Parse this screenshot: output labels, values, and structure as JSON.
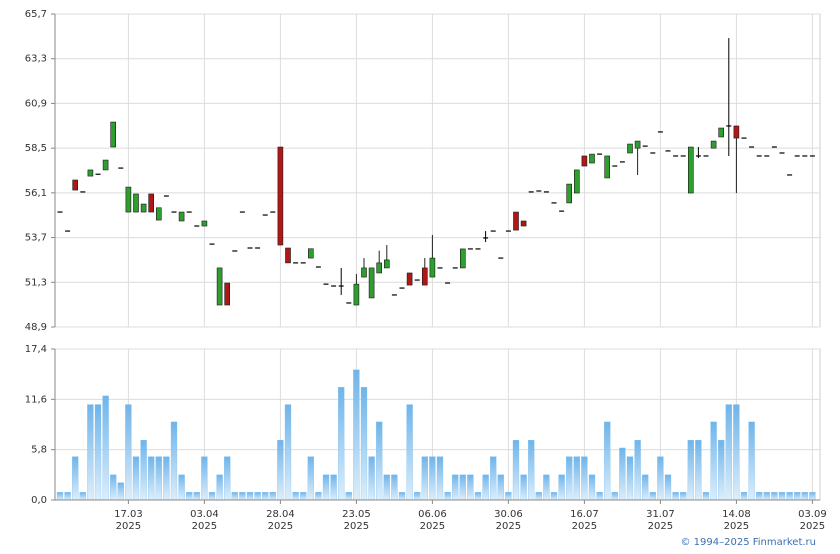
{
  "chart_data": {
    "type": "candlestick",
    "categories": [
      null,
      null,
      null,
      null,
      null,
      null,
      null,
      null,
      null,
      [
        "17.03",
        "2025"
      ],
      null,
      null,
      null,
      null,
      null,
      null,
      null,
      null,
      null,
      [
        "03.04",
        "2025"
      ],
      null,
      null,
      null,
      null,
      null,
      null,
      null,
      null,
      null,
      [
        "28.04",
        "2025"
      ],
      null,
      null,
      null,
      null,
      null,
      null,
      null,
      null,
      null,
      [
        "23.05",
        "2025"
      ],
      null,
      null,
      null,
      null,
      null,
      null,
      null,
      null,
      null,
      [
        "06.06",
        "2025"
      ],
      null,
      null,
      null,
      null,
      null,
      null,
      null,
      null,
      null,
      [
        "30.06",
        "2025"
      ],
      null,
      null,
      null,
      null,
      null,
      null,
      null,
      null,
      null,
      [
        "16.07",
        "2025"
      ],
      null,
      null,
      null,
      null,
      null,
      null,
      null,
      null,
      null,
      [
        "31.07",
        "2025"
      ],
      null,
      null,
      null,
      null,
      null,
      null,
      null,
      null,
      null,
      [
        "14.08",
        "2025"
      ],
      null,
      null,
      null,
      null,
      null,
      null,
      null,
      null,
      null,
      [
        "03.09",
        "2025"
      ]
    ],
    "open": [
      55.07,
      54.05,
      56.79,
      56.15,
      57.0,
      57.1,
      57.33,
      58.56,
      57.43,
      55.07,
      55.07,
      55.07,
      56.04,
      54.64,
      55.93,
      55.07,
      54.59,
      55.07,
      54.32,
      54.32,
      53.35,
      50.08,
      51.26,
      52.98,
      55.07,
      53.14,
      53.14,
      54.91,
      55.07,
      58.56,
      53.14,
      52.34,
      52.34,
      52.6,
      52.12,
      51.2,
      51.1,
      51.1,
      50.19,
      50.08,
      51.58,
      50.46,
      51.8,
      52.07,
      50.62,
      50.99,
      51.8,
      51.42,
      52.07,
      51.58,
      52.07,
      51.26,
      52.07,
      52.07,
      53.09,
      53.09,
      53.68,
      54.05,
      52.6,
      54.05,
      55.07,
      54.59,
      56.15,
      56.2,
      56.15,
      55.56,
      55.12,
      55.56,
      56.09,
      58.08,
      57.7,
      58.18,
      56.9,
      57.54,
      57.76,
      58.24,
      58.5,
      58.61,
      58.24,
      59.37,
      58.35,
      58.08,
      58.08,
      56.09,
      58.08,
      58.08,
      58.5,
      59.1,
      59.69,
      59.69,
      59.04,
      58.56,
      58.08,
      58.08,
      58.56,
      58.24,
      57.06,
      58.08,
      58.08,
      58.08
    ],
    "high": [
      55.07,
      54.05,
      56.79,
      56.15,
      57.33,
      57.1,
      57.86,
      59.9,
      57.43,
      56.41,
      56.04,
      55.5,
      56.04,
      55.3,
      55.93,
      55.07,
      55.07,
      55.07,
      54.32,
      54.59,
      53.35,
      52.07,
      51.26,
      52.98,
      55.07,
      53.14,
      53.14,
      54.91,
      55.07,
      58.56,
      53.14,
      52.34,
      52.34,
      53.1,
      52.12,
      51.2,
      51.1,
      52.07,
      50.19,
      51.74,
      52.6,
      52.07,
      53.0,
      53.3,
      50.62,
      50.99,
      51.8,
      51.42,
      52.6,
      53.84,
      52.07,
      51.26,
      52.07,
      53.09,
      53.09,
      53.09,
      54.05,
      54.05,
      52.6,
      54.05,
      55.07,
      54.59,
      56.15,
      56.2,
      56.15,
      55.56,
      55.12,
      56.57,
      57.33,
      58.08,
      58.18,
      58.18,
      58.08,
      57.54,
      57.76,
      58.72,
      58.88,
      58.61,
      58.24,
      59.37,
      58.35,
      58.08,
      58.08,
      58.56,
      58.56,
      58.08,
      58.88,
      59.58,
      64.41,
      59.69,
      59.04,
      58.56,
      58.08,
      58.08,
      58.56,
      58.24,
      57.06,
      58.08,
      58.08,
      58.08
    ],
    "low": [
      55.07,
      54.05,
      56.25,
      56.15,
      57.0,
      57.1,
      57.33,
      58.56,
      57.43,
      55.07,
      55.07,
      55.07,
      55.07,
      54.64,
      55.93,
      55.07,
      54.59,
      55.07,
      54.32,
      54.32,
      53.35,
      50.08,
      50.08,
      52.98,
      55.07,
      53.14,
      53.14,
      54.91,
      55.07,
      53.3,
      52.34,
      52.34,
      52.34,
      52.6,
      52.12,
      51.2,
      51.1,
      50.62,
      50.19,
      50.08,
      51.58,
      50.46,
      51.8,
      52.07,
      50.62,
      50.99,
      51.15,
      51.42,
      51.15,
      51.58,
      52.07,
      51.26,
      52.07,
      52.07,
      53.09,
      53.09,
      53.46,
      54.05,
      52.6,
      54.05,
      54.1,
      54.32,
      56.15,
      56.2,
      56.15,
      55.56,
      55.12,
      55.56,
      56.09,
      57.54,
      57.7,
      58.18,
      56.9,
      57.54,
      57.76,
      58.24,
      57.06,
      58.61,
      58.24,
      59.37,
      58.35,
      58.08,
      58.08,
      56.09,
      57.97,
      58.08,
      58.5,
      59.1,
      58.08,
      56.09,
      59.04,
      58.56,
      58.08,
      58.08,
      58.56,
      58.24,
      57.06,
      58.08,
      58.08,
      58.08
    ],
    "close": [
      55.07,
      54.05,
      56.25,
      56.15,
      57.33,
      57.1,
      57.86,
      59.9,
      57.43,
      56.41,
      56.04,
      55.5,
      55.07,
      55.3,
      55.93,
      55.07,
      55.07,
      55.07,
      54.32,
      54.59,
      53.35,
      52.07,
      50.08,
      52.98,
      55.07,
      53.14,
      53.14,
      54.91,
      55.07,
      53.3,
      52.34,
      52.34,
      52.34,
      53.1,
      52.12,
      51.2,
      51.1,
      51.1,
      50.19,
      51.2,
      52.07,
      52.07,
      52.34,
      52.5,
      50.62,
      50.99,
      51.15,
      51.42,
      51.15,
      52.6,
      52.07,
      51.26,
      52.07,
      53.09,
      53.09,
      53.09,
      53.68,
      54.05,
      52.6,
      54.05,
      54.1,
      54.32,
      56.15,
      56.2,
      56.15,
      55.56,
      55.12,
      56.57,
      57.33,
      57.54,
      58.18,
      58.18,
      58.08,
      57.54,
      57.76,
      58.72,
      58.88,
      58.61,
      58.24,
      59.37,
      58.35,
      58.08,
      58.08,
      58.56,
      58.08,
      58.08,
      58.88,
      59.58,
      59.69,
      59.04,
      59.04,
      58.56,
      58.08,
      58.08,
      58.56,
      58.24,
      57.06,
      58.08,
      58.08,
      58.08
    ],
    "volume": [
      0.9,
      0.9,
      5,
      0.9,
      11,
      11,
      12,
      2.9,
      2,
      11,
      5,
      6.9,
      5,
      5,
      5,
      9,
      2.9,
      0.9,
      0.9,
      5,
      0.9,
      2.9,
      5,
      0.9,
      0.9,
      0.9,
      0.9,
      0.9,
      0.9,
      6.9,
      11,
      0.9,
      0.9,
      5,
      0.9,
      2.9,
      2.9,
      13,
      0.9,
      15,
      13,
      5,
      9,
      2.9,
      2.9,
      0.9,
      11,
      0.9,
      5,
      5,
      5,
      0.9,
      2.9,
      2.9,
      2.9,
      0.9,
      2.9,
      5,
      2.9,
      0.9,
      6.9,
      2.9,
      6.9,
      0.9,
      2.9,
      0.9,
      2.9,
      5,
      5,
      5,
      2.9,
      0.9,
      9,
      0.9,
      6,
      5,
      6.9,
      2.9,
      0.9,
      5,
      2.9,
      0.9,
      0.9,
      6.9,
      6.9,
      0.9,
      9,
      6.9,
      11,
      11,
      0.9,
      9,
      0.9,
      0.9,
      0.9,
      0.9,
      0.9,
      0.9,
      0.9,
      0.9
    ],
    "ylim": [
      48.9,
      65.7
    ],
    "yticks": [
      {
        "value": 48.9,
        "label": "48,9"
      },
      {
        "value": 51.3,
        "label": "51,3"
      },
      {
        "value": 53.7,
        "label": "53,7"
      },
      {
        "value": 56.1,
        "label": "56,1"
      },
      {
        "value": 58.5,
        "label": "58,5"
      },
      {
        "value": 60.9,
        "label": "60,9"
      },
      {
        "value": 63.3,
        "label": "63,3"
      },
      {
        "value": 65.7,
        "label": "65,7"
      }
    ],
    "volume_ylim": [
      0,
      17.4
    ],
    "volume_yticks": [
      {
        "value": 0,
        "label": "0,0"
      },
      {
        "value": 5.8,
        "label": "5,8"
      },
      {
        "value": 11.6,
        "label": "11,6"
      },
      {
        "value": 17.4,
        "label": "17,4"
      }
    ],
    "up_color": "#2e9e2e",
    "down_color": "#b01818",
    "flat_color": "#000000",
    "volume_color": "#7fbfee",
    "grid": true,
    "footer": "© 1994–2025 Finmarket.ru"
  }
}
